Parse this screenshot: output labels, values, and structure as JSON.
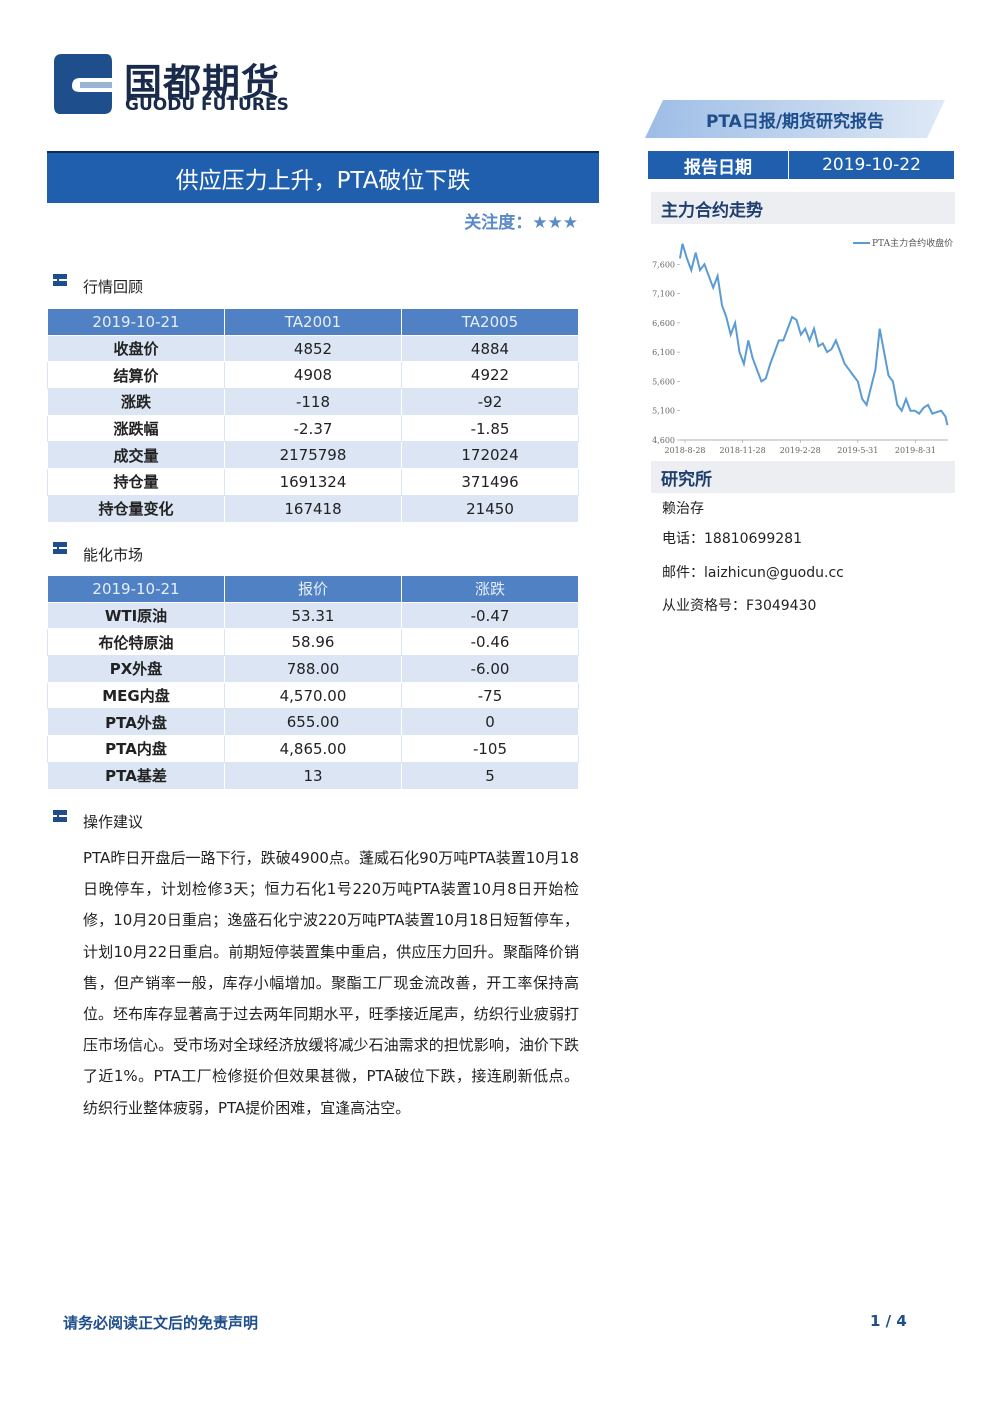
{
  "header": {
    "logo_cn": "国都期货",
    "logo_en": "GUODU FUTURES",
    "report_type": "PTA日报/期货研究报告"
  },
  "title": "供应压力上升，PTA破位下跌",
  "attention": {
    "label": "关注度：",
    "stars": "★★★"
  },
  "report_date": {
    "label": "报告日期",
    "value": "2019-10-22"
  },
  "trend_heading": "主力合约走势",
  "chart_data": {
    "type": "line",
    "x": [
      "2018-8-20",
      "2018-8-24",
      "2018-8-31",
      "2018-9-7",
      "2018-9-14",
      "2018-9-21",
      "2018-9-28",
      "2018-10-12",
      "2018-10-19",
      "2018-10-26",
      "2018-11-2",
      "2018-11-9",
      "2018-11-16",
      "2018-11-23",
      "2018-11-30",
      "2018-12-7",
      "2018-12-14",
      "2018-12-21",
      "2018-12-28",
      "2019-1-4",
      "2019-1-11",
      "2019-1-18",
      "2019-1-25",
      "2019-2-1",
      "2019-2-15",
      "2019-2-22",
      "2019-3-1",
      "2019-3-8",
      "2019-3-15",
      "2019-3-22",
      "2019-3-29",
      "2019-4-5",
      "2019-4-12",
      "2019-4-19",
      "2019-4-26",
      "2019-5-10",
      "2019-5-17",
      "2019-5-24",
      "2019-5-31",
      "2019-6-7",
      "2019-6-14",
      "2019-6-21",
      "2019-6-28",
      "2019-7-5",
      "2019-7-12",
      "2019-7-19",
      "2019-7-26",
      "2019-8-2",
      "2019-8-9",
      "2019-8-16",
      "2019-8-23",
      "2019-8-30",
      "2019-9-6",
      "2019-9-13",
      "2019-9-20",
      "2019-9-27",
      "2019-10-11",
      "2019-10-18",
      "2019-10-21"
    ],
    "series": [
      {
        "name": "PTA主力合约收盘价",
        "color": "#5b9bd5",
        "values": [
          7700,
          7950,
          7700,
          7500,
          7800,
          7500,
          7600,
          7200,
          7400,
          6900,
          6700,
          6400,
          6600,
          6100,
          5900,
          6300,
          6000,
          5800,
          5600,
          5650,
          5900,
          6100,
          6300,
          6300,
          6700,
          6650,
          6400,
          6500,
          6300,
          6500,
          6200,
          6250,
          6100,
          6150,
          6300,
          5900,
          5800,
          5700,
          5600,
          5300,
          5200,
          5500,
          5800,
          6500,
          6100,
          5700,
          5600,
          5200,
          5100,
          5300,
          5100,
          5100,
          5050,
          5150,
          5200,
          5050,
          5100,
          5000,
          4852
        ]
      }
    ],
    "xlim": [
      "2018-8-20",
      "2019-10-22"
    ],
    "xticks": [
      "2018-8-28",
      "2018-11-28",
      "2019-2-28",
      "2019-5-31",
      "2019-8-31"
    ],
    "ylim": [
      4600,
      8100
    ],
    "yticks": [
      {
        "value": 4600,
        "label": "4,600"
      },
      {
        "value": 5100,
        "label": "5,100"
      },
      {
        "value": 5600,
        "label": "5,600"
      },
      {
        "value": 6100,
        "label": "6,100"
      },
      {
        "value": 6600,
        "label": "6,600"
      },
      {
        "value": 7100,
        "label": "7,100"
      },
      {
        "value": 7600,
        "label": "7,600"
      }
    ],
    "legend": "upper right"
  },
  "research": {
    "heading": "研究所",
    "analyst": "赖治存",
    "phone": "电话：18810699281",
    "email": "邮件：laizhicun@guodu.cc",
    "license": "从业资格号：F3049430"
  },
  "market_table": {
    "heading": "行情回顾",
    "header": [
      "2019-10-21",
      "TA2001",
      "TA2005"
    ],
    "rows": [
      [
        "收盘价",
        "4852",
        "4884"
      ],
      [
        "结算价",
        "4908",
        "4922"
      ],
      [
        "涨跌",
        "-118",
        "-92"
      ],
      [
        "涨跌幅",
        "-2.37",
        "-1.85"
      ],
      [
        "成交量",
        "2175798",
        "172024"
      ],
      [
        "持仓量",
        "1691324",
        "371496"
      ],
      [
        "持仓量变化",
        "167418",
        "21450"
      ]
    ]
  },
  "energy_table": {
    "heading": "能化市场",
    "header": [
      "2019-10-21",
      "报价",
      "涨跌"
    ],
    "rows": [
      [
        "WTI原油",
        "53.31",
        "-0.47"
      ],
      [
        "布伦特原油",
        "58.96",
        "-0.46"
      ],
      [
        "PX外盘",
        "788.00",
        "-6.00"
      ],
      [
        "MEG内盘",
        "4,570.00",
        "-75"
      ],
      [
        "PTA外盘",
        "655.00",
        "0"
      ],
      [
        "PTA内盘",
        "4,865.00",
        "-105"
      ],
      [
        "PTA基差",
        "13",
        "5"
      ]
    ]
  },
  "advice": {
    "heading": "操作建议",
    "text": "PTA昨日开盘后一路下行，跌破4900点。蓬威石化90万吨PTA装置10月18日晚停车，计划检修3天；恒力石化1号220万吨PTA装置10月8日开始检修，10月20日重启；逸盛石化宁波220万吨PTA装置10月18日短暂停车，计划10月22日重启。前期短停装置集中重启，供应压力回升。聚酯降价销售，但产销率一般，库存小幅增加。聚酯工厂现金流改善，开工率保持高位。坯布库存显著高于过去两年同期水平，旺季接近尾声，纺织行业疲弱打压市场信心。受市场对全球经济放缓将减少石油需求的担忧影响，油价下跌了近1%。PTA工厂检修挺价但效果甚微，PTA破位下跌，接连刷新低点。纺织行业整体疲弱，PTA提价困难，宜逢高沽空。"
  },
  "footer": {
    "disclaimer": "请务必阅读正文后的免责声明",
    "page": "1 / 4"
  }
}
